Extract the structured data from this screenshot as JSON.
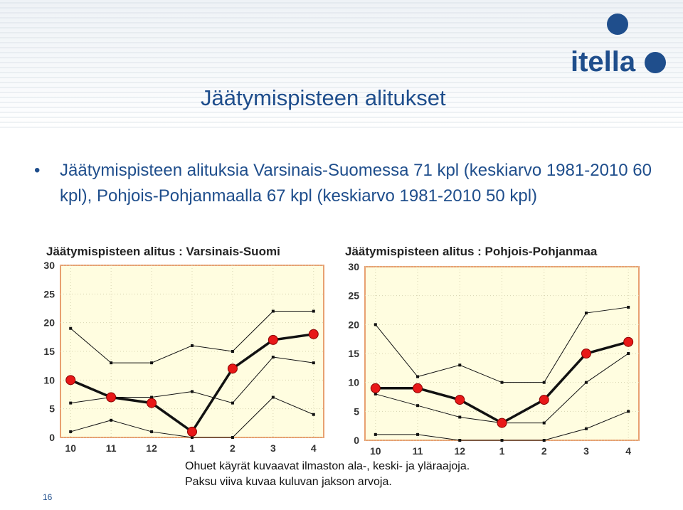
{
  "slide": {
    "title": "Jäätymispisteen alitukset",
    "bullet": "Jäätymispisteen alituksia Varsinais-Suomessa 71 kpl (keskiarvo 1981-2010 60 kpl), Pohjois-Pohjanmaalla 67 kpl (keskiarvo 1981-2010 50 kpl)",
    "caption": "Ohuet käyrät kuvaavat ilmaston ala-, keski- ja yläraajoja. Paksu viiva kuvaa kuluvan jakson arvoja.",
    "page_number": "16",
    "logo_text": "itella"
  },
  "colors": {
    "title": "#1f4e8c",
    "plot_bg": "#fffde0",
    "border": "#e8a070",
    "marker": "#e81818",
    "logo": "#1f4e8c"
  },
  "chart_data": [
    {
      "type": "line",
      "title": "Jäätymispisteen alitus : Varsinais-Suomi",
      "categories": [
        "10",
        "11",
        "12",
        "1",
        "2",
        "3",
        "4"
      ],
      "ylim": [
        0,
        30
      ],
      "yticks": [
        0,
        5,
        10,
        15,
        20,
        25,
        30
      ],
      "grid": true,
      "series": [
        {
          "role": "upper",
          "values": [
            19,
            13,
            13,
            16,
            15,
            22,
            22
          ]
        },
        {
          "role": "middle",
          "values": [
            6,
            7,
            7,
            8,
            6,
            14,
            13
          ]
        },
        {
          "role": "lower",
          "values": [
            1,
            3,
            1,
            0,
            0,
            7,
            4
          ]
        },
        {
          "role": "current",
          "values": [
            10,
            7,
            6,
            1,
            12,
            17,
            18
          ]
        }
      ]
    },
    {
      "type": "line",
      "title": "Jäätymispisteen alitus : Pohjois-Pohjanmaa",
      "categories": [
        "10",
        "11",
        "12",
        "1",
        "2",
        "3",
        "4"
      ],
      "ylim": [
        0,
        30
      ],
      "yticks": [
        0,
        5,
        10,
        15,
        20,
        25,
        30
      ],
      "grid": true,
      "series": [
        {
          "role": "upper",
          "values": [
            20,
            11,
            13,
            10,
            10,
            22,
            23
          ]
        },
        {
          "role": "middle",
          "values": [
            8,
            6,
            4,
            3,
            3,
            10,
            15
          ]
        },
        {
          "role": "lower",
          "values": [
            1,
            1,
            0,
            0,
            0,
            2,
            5
          ]
        },
        {
          "role": "current",
          "values": [
            9,
            9,
            7,
            3,
            7,
            15,
            17
          ]
        }
      ]
    }
  ]
}
